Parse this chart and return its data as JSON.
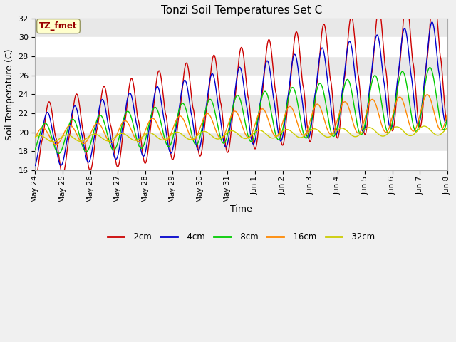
{
  "title": "Tonzi Soil Temperatures Set C",
  "xlabel": "Time",
  "ylabel": "Soil Temperature (C)",
  "ylim": [
    16,
    32
  ],
  "yticks": [
    16,
    18,
    20,
    22,
    24,
    26,
    28,
    30,
    32
  ],
  "annotation_text": "TZ_fmet",
  "annotation_bg": "#ffffcc",
  "annotation_border": "#999966",
  "annotation_fg": "#990000",
  "line_colors": {
    "-2cm": "#cc0000",
    "-4cm": "#0000cc",
    "-8cm": "#00cc00",
    "-16cm": "#ff8800",
    "-32cm": "#cccc00"
  },
  "legend_labels": [
    "-2cm",
    "-4cm",
    "-8cm",
    "-16cm",
    "-32cm"
  ],
  "fig_bg": "#f0f0f0",
  "plot_bg": "#e8e8e8",
  "x_tick_labels": [
    "May 24",
    "May 25",
    "May 26",
    "May 27",
    "May 28",
    "May 29",
    "May 30",
    "May 31",
    "Jun 1",
    "Jun 2",
    "Jun 3",
    "Jun 4",
    "Jun 5",
    "Jun 6",
    "Jun 7",
    "Jun 8"
  ]
}
